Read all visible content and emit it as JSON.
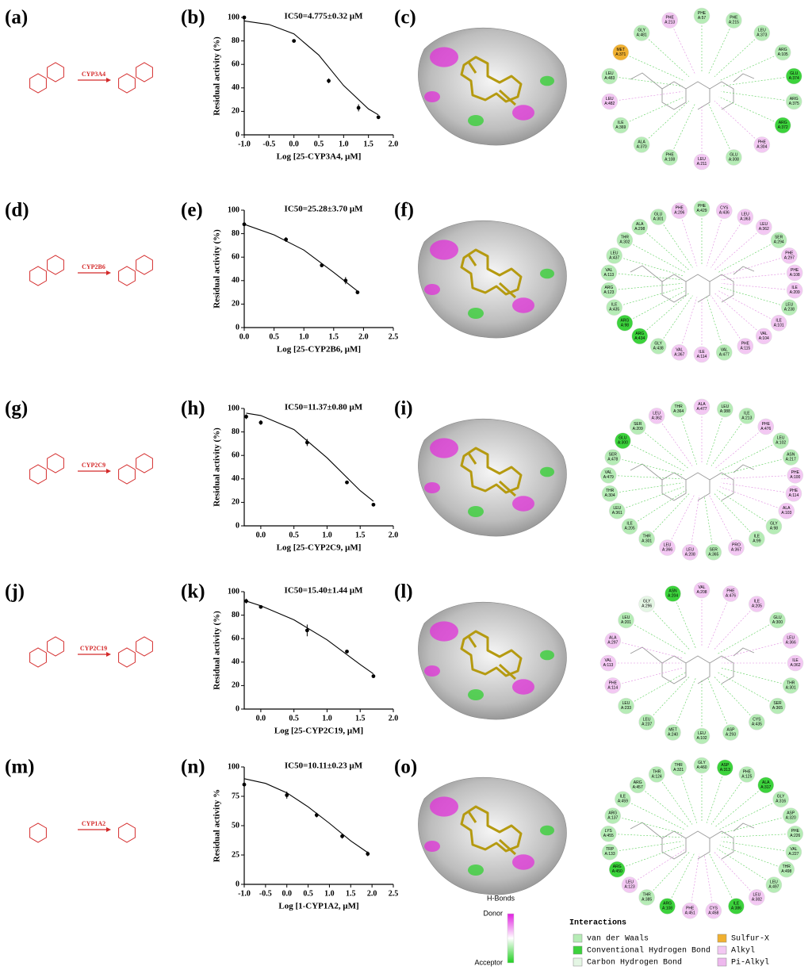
{
  "chart_data": [
    {
      "type": "scatter",
      "title": "IC50=4.775±0.32 μM",
      "x_label": "Log [25-CYP3A4, μM]",
      "y_label": "Residual activity (%)",
      "xlim": [
        -1,
        2
      ],
      "xticks": [
        {
          "value": -1,
          "label": "-1.0"
        },
        -0.5,
        {
          "value": 0,
          "label": "0.0"
        },
        0.5,
        {
          "value": 1,
          "label": "1.0"
        },
        1.5,
        {
          "value": 2,
          "label": "2.0"
        }
      ],
      "ylim": [
        0,
        100
      ],
      "yticks": [
        0,
        20,
        40,
        60,
        80,
        100
      ],
      "series": [
        {
          "x": [
            -1,
            0,
            0.7,
            1.3,
            1.7
          ],
          "values": [
            100,
            80,
            46,
            23,
            15
          ],
          "errors": [
            1,
            1,
            2,
            3,
            1
          ],
          "color": "#000000"
        },
        {
          "x": [
            -1,
            -0.5,
            0,
            0.5,
            1,
            1.5,
            1.7
          ],
          "values": [
            97,
            94,
            86,
            68,
            42,
            22,
            17
          ],
          "color": "#000000"
        }
      ]
    },
    {
      "type": "scatter",
      "title": "IC50=25.28±3.70 μM",
      "x_label": "Log [25-CYP2B6, μM]",
      "y_label": "Residual activity (%)",
      "xlim": [
        0,
        2.5
      ],
      "xticks": [
        {
          "value": 0,
          "label": "0.0"
        },
        0.5,
        {
          "value": 1,
          "label": "1.0"
        },
        1.5,
        {
          "value": 2,
          "label": "2.0"
        },
        2.5
      ],
      "ylim": [
        0,
        100
      ],
      "yticks": [
        0,
        20,
        40,
        60,
        80,
        100
      ],
      "series": [
        {
          "x": [
            0,
            0.7,
            1.3,
            1.7,
            1.9
          ],
          "values": [
            88,
            75,
            53,
            40,
            30
          ],
          "errors": [
            4,
            2,
            1,
            3,
            1
          ],
          "color": "#000000"
        },
        {
          "x": [
            0,
            0.5,
            1,
            1.5,
            1.9
          ],
          "values": [
            88,
            79,
            66,
            47,
            31
          ],
          "color": "#000000"
        }
      ]
    },
    {
      "type": "scatter",
      "title": "IC50=11.37±0.80 μM",
      "x_label": "Log [25-CYP2C9, μM]",
      "y_label": "Residual activity (%)",
      "xlim": [
        -0.25,
        2
      ],
      "xticks": [
        {
          "value": 0,
          "label": "0.0"
        },
        0.5,
        {
          "value": 1,
          "label": "1.0"
        },
        1.5,
        {
          "value": 2,
          "label": "2.0"
        }
      ],
      "ylim": [
        0,
        100
      ],
      "yticks": [
        0,
        20,
        40,
        60,
        80,
        100
      ],
      "series": [
        {
          "x": [
            -0.22,
            0,
            0.7,
            1.3,
            1.7
          ],
          "values": [
            93,
            88,
            71,
            37,
            18
          ],
          "errors": [
            2,
            2,
            3,
            1,
            1
          ],
          "color": "#000000"
        },
        {
          "x": [
            -0.22,
            0,
            0.5,
            1,
            1.5,
            1.7
          ],
          "values": [
            96,
            94,
            82,
            58,
            30,
            21
          ],
          "color": "#000000"
        }
      ]
    },
    {
      "type": "scatter",
      "title": "IC50=15.40±1.44 μM",
      "x_label": "Log [25-CYP2C19, μM]",
      "y_label": "Residual activity (%)",
      "xlim": [
        -0.25,
        2
      ],
      "xticks": [
        {
          "value": 0,
          "label": "0.0"
        },
        0.5,
        {
          "value": 1,
          "label": "1.0"
        },
        1.5,
        {
          "value": 2,
          "label": "2.0"
        }
      ],
      "ylim": [
        0,
        100
      ],
      "yticks": [
        0,
        20,
        40,
        60,
        80,
        100
      ],
      "series": [
        {
          "x": [
            -0.22,
            0,
            0.7,
            1.3,
            1.7
          ],
          "values": [
            92,
            87,
            67,
            49,
            28
          ],
          "errors": [
            2,
            1,
            5,
            1,
            1
          ],
          "color": "#000000"
        },
        {
          "x": [
            -0.22,
            0,
            0.5,
            1,
            1.5,
            1.7
          ],
          "values": [
            92,
            88,
            76,
            59,
            38,
            30
          ],
          "color": "#000000"
        }
      ]
    },
    {
      "type": "scatter",
      "title": "IC50=10.11±0.23 μM",
      "x_label": "Log [1-CYP1A2, μM]",
      "y_label": "Residual activity %",
      "xlim": [
        -1,
        2.5
      ],
      "xticks": [
        {
          "value": -1,
          "label": "-1.0"
        },
        -0.5,
        {
          "value": 0,
          "label": "0.0"
        },
        0.5,
        {
          "value": 1,
          "label": "1.0"
        },
        1.5,
        {
          "value": 2,
          "label": "2.0"
        },
        2.5
      ],
      "ylim": [
        0,
        100
      ],
      "yticks": [
        0,
        25,
        50,
        75,
        100
      ],
      "series": [
        {
          "x": [
            -1,
            0,
            0.7,
            1.3,
            1.9
          ],
          "values": [
            85,
            76,
            59,
            41,
            26
          ],
          "errors": [
            3,
            3,
            2,
            2,
            2
          ],
          "color": "#000000"
        },
        {
          "x": [
            -1,
            -0.5,
            0,
            0.5,
            1,
            1.5,
            1.9
          ],
          "values": [
            90,
            86,
            78,
            66,
            52,
            37,
            27
          ],
          "color": "#000000"
        }
      ]
    }
  ],
  "panel_labels": [
    "(a)",
    "(b)",
    "(c)",
    "(d)",
    "(e)",
    "(f)",
    "(g)",
    "(h)",
    "(i)",
    "(j)",
    "(k)",
    "(l)",
    "(m)",
    "(n)",
    "(o)"
  ],
  "enzymes": [
    "CYP3A4",
    "CYP2B6",
    "CYP2C9",
    "CYP2C19",
    "CYP1A2"
  ],
  "interactions": [
    [
      {
        "label": "PHE A:57",
        "color": "#b6ecb6"
      },
      {
        "label": "PHE A:215",
        "color": "#b6ecb6"
      },
      {
        "label": "LEU A:373",
        "color": "#b6ecb6"
      },
      {
        "label": "ARG A:105",
        "color": "#b6ecb6"
      },
      {
        "label": "GLU A:374",
        "color": "#3cd23c"
      },
      {
        "label": "ARG A:375",
        "color": "#b6ecb6"
      },
      {
        "label": "ARG A:372",
        "color": "#3cd23c"
      },
      {
        "label": "PHE A:304",
        "color": "#f3c8f3"
      },
      {
        "label": "GLU A:308",
        "color": "#b6ecb6"
      },
      {
        "label": "LEU A:211",
        "color": "#f3c8f3"
      },
      {
        "label": "PHE A:108",
        "color": "#b6ecb6"
      },
      {
        "label": "ALA A:370",
        "color": "#b6ecb6"
      },
      {
        "label": "ILE A:369",
        "color": "#b6ecb6"
      },
      {
        "label": "LEU A:482",
        "color": "#f3c8f3"
      },
      {
        "label": "LEU A:483",
        "color": "#b6ecb6"
      },
      {
        "label": "MET A:371",
        "color": "#f0b030"
      },
      {
        "label": "GLY A:481",
        "color": "#b6ecb6"
      },
      {
        "label": "PHE A:213",
        "color": "#f3c8f3"
      }
    ],
    [
      {
        "label": "PHE A:429",
        "color": "#b6ecb6"
      },
      {
        "label": "CYS A:436",
        "color": "#f3c8f3"
      },
      {
        "label": "LEU A:363",
        "color": "#f3c8f3"
      },
      {
        "label": "LEU A:362",
        "color": "#f3c8f3"
      },
      {
        "label": "SER A:294",
        "color": "#b6ecb6"
      },
      {
        "label": "PHE A:297",
        "color": "#f3c8f3"
      },
      {
        "label": "PHE A:108",
        "color": "#f3c8f3"
      },
      {
        "label": "ILE A:209",
        "color": "#f3c8f3"
      },
      {
        "label": "LEU A:238",
        "color": "#b6ecb6"
      },
      {
        "label": "ILE A:101",
        "color": "#f3c8f3"
      },
      {
        "label": "VAL A:104",
        "color": "#f3c8f3"
      },
      {
        "label": "PHE A:115",
        "color": "#f3c8f3"
      },
      {
        "label": "VAL A:477",
        "color": "#b6ecb6"
      },
      {
        "label": "ILE A:114",
        "color": "#f3c8f3"
      },
      {
        "label": "VAL A:367",
        "color": "#f3c8f3"
      },
      {
        "label": "GLY A:438",
        "color": "#b6ecb6"
      },
      {
        "label": "ARG A:434",
        "color": "#3cd23c"
      },
      {
        "label": "ARG A:98",
        "color": "#3cd23c"
      },
      {
        "label": "ILE A:435",
        "color": "#b6ecb6"
      },
      {
        "label": "ARG A:123",
        "color": "#b6ecb6"
      },
      {
        "label": "VAL A:113",
        "color": "#b6ecb6"
      },
      {
        "label": "LEU A:437",
        "color": "#b6ecb6"
      },
      {
        "label": "THR A:302",
        "color": "#b6ecb6"
      },
      {
        "label": "ALA A:298",
        "color": "#b6ecb6"
      },
      {
        "label": "GLU A:301",
        "color": "#b6ecb6"
      },
      {
        "label": "PHE A:206",
        "color": "#f3c8f3"
      }
    ],
    [
      {
        "label": "ALA A:477",
        "color": "#f3c8f3"
      },
      {
        "label": "LEU A:388",
        "color": "#b6ecb6"
      },
      {
        "label": "ILE A:213",
        "color": "#b6ecb6"
      },
      {
        "label": "PHE A:476",
        "color": "#f3c8f3"
      },
      {
        "label": "LEU A:102",
        "color": "#b6ecb6"
      },
      {
        "label": "ASN A:217",
        "color": "#b6ecb6"
      },
      {
        "label": "PHE A:100",
        "color": "#f3c8f3"
      },
      {
        "label": "PHE A:114",
        "color": "#f3c8f3"
      },
      {
        "label": "ALA A:103",
        "color": "#f3c8f3"
      },
      {
        "label": "GLY A:98",
        "color": "#b6ecb6"
      },
      {
        "label": "ILE A:99",
        "color": "#b6ecb6"
      },
      {
        "label": "PRO A:367",
        "color": "#f3c8f3"
      },
      {
        "label": "SER A:365",
        "color": "#b6ecb6"
      },
      {
        "label": "LEU A:208",
        "color": "#f3c8f3"
      },
      {
        "label": "LEU A:366",
        "color": "#f3c8f3"
      },
      {
        "label": "THR A:301",
        "color": "#b6ecb6"
      },
      {
        "label": "ILE A:205",
        "color": "#b6ecb6"
      },
      {
        "label": "LEU A:361",
        "color": "#b6ecb6"
      },
      {
        "label": "THR A:304",
        "color": "#b6ecb6"
      },
      {
        "label": "VAL A:479",
        "color": "#b6ecb6"
      },
      {
        "label": "SER A:478",
        "color": "#b6ecb6"
      },
      {
        "label": "GLU A:300",
        "color": "#3cd23c"
      },
      {
        "label": "SER A:209",
        "color": "#b6ecb6"
      },
      {
        "label": "LEU A:362",
        "color": "#f3c8f3"
      },
      {
        "label": "THR A:364",
        "color": "#b6ecb6"
      }
    ],
    [
      {
        "label": "VAL A:208",
        "color": "#f3c8f3"
      },
      {
        "label": "PHE A:476",
        "color": "#f3c8f3"
      },
      {
        "label": "ILE A:205",
        "color": "#f3c8f3"
      },
      {
        "label": "GLU A:300",
        "color": "#b6ecb6"
      },
      {
        "label": "LEU A:366",
        "color": "#f3c8f3"
      },
      {
        "label": "ILE A:362",
        "color": "#f3c8f3"
      },
      {
        "label": "THR A:301",
        "color": "#b6ecb6"
      },
      {
        "label": "SER A:365",
        "color": "#b6ecb6"
      },
      {
        "label": "CYS A:435",
        "color": "#b6ecb6"
      },
      {
        "label": "ASP A:293",
        "color": "#b6ecb6"
      },
      {
        "label": "LEU A:102",
        "color": "#b6ecb6"
      },
      {
        "label": "MET A:240",
        "color": "#b6ecb6"
      },
      {
        "label": "LEU A:237",
        "color": "#b6ecb6"
      },
      {
        "label": "LEU A:233",
        "color": "#b6ecb6"
      },
      {
        "label": "PHE A:114",
        "color": "#f3c8f3"
      },
      {
        "label": "VAL A:113",
        "color": "#f3c8f3"
      },
      {
        "label": "ALA A:297",
        "color": "#f3c8f3"
      },
      {
        "label": "LEU A:201",
        "color": "#b6ecb6"
      },
      {
        "label": "GLY A:296",
        "color": "#e4f6e4"
      },
      {
        "label": "ASN A:204",
        "color": "#3cd23c"
      }
    ],
    [
      {
        "label": "GLY A:460",
        "color": "#b6ecb6"
      },
      {
        "label": "ASP A:313",
        "color": "#3cd23c"
      },
      {
        "label": "PHE A:125",
        "color": "#b6ecb6"
      },
      {
        "label": "ALA A:317",
        "color": "#3cd23c"
      },
      {
        "label": "GLY A:316",
        "color": "#b6ecb6"
      },
      {
        "label": "ASP A:320",
        "color": "#b6ecb6"
      },
      {
        "label": "PHE A:226",
        "color": "#b6ecb6"
      },
      {
        "label": "VAL A:227",
        "color": "#b6ecb6"
      },
      {
        "label": "THR A:498",
        "color": "#b6ecb6"
      },
      {
        "label": "LEU A:497",
        "color": "#b6ecb6"
      },
      {
        "label": "LEU A:382",
        "color": "#f3c8f3"
      },
      {
        "label": "ILE A:386",
        "color": "#3cd23c"
      },
      {
        "label": "CYS A:458",
        "color": "#f3c8f3"
      },
      {
        "label": "PHE A:451",
        "color": "#f3c8f3"
      },
      {
        "label": "ARG A:108",
        "color": "#3cd23c"
      },
      {
        "label": "THR A:385",
        "color": "#b6ecb6"
      },
      {
        "label": "LEU A:123",
        "color": "#f3c8f3"
      },
      {
        "label": "ARG A:450",
        "color": "#3cd23c"
      },
      {
        "label": "TRP A:133",
        "color": "#b6ecb6"
      },
      {
        "label": "LYS A:455",
        "color": "#b6ecb6"
      },
      {
        "label": "ARG A:137",
        "color": "#b6ecb6"
      },
      {
        "label": "ILE A:459",
        "color": "#b6ecb6"
      },
      {
        "label": "ARG A:457",
        "color": "#b6ecb6"
      },
      {
        "label": "THR A:124",
        "color": "#b6ecb6"
      },
      {
        "label": "THR A:321",
        "color": "#b6ecb6"
      }
    ]
  ],
  "hbond_legend": {
    "title": "H-Bonds",
    "donor": "Donor",
    "acceptor": "Acceptor"
  },
  "interaction_legend": {
    "title": "Interactions",
    "entries": [
      {
        "label": "van der Waals",
        "color": "#b6ecb6"
      },
      {
        "label": "Sulfur-X",
        "color": "#f0b030"
      },
      {
        "label": "Conventional Hydrogen Bond",
        "color": "#3cd23c"
      },
      {
        "label": "Alkyl",
        "color": "#f3c8f3"
      },
      {
        "label": "Carbon Hydrogen Bond",
        "color": "#e4f6e4"
      },
      {
        "label": "Pi-Alkyl",
        "color": "#eeb8ee"
      }
    ]
  }
}
